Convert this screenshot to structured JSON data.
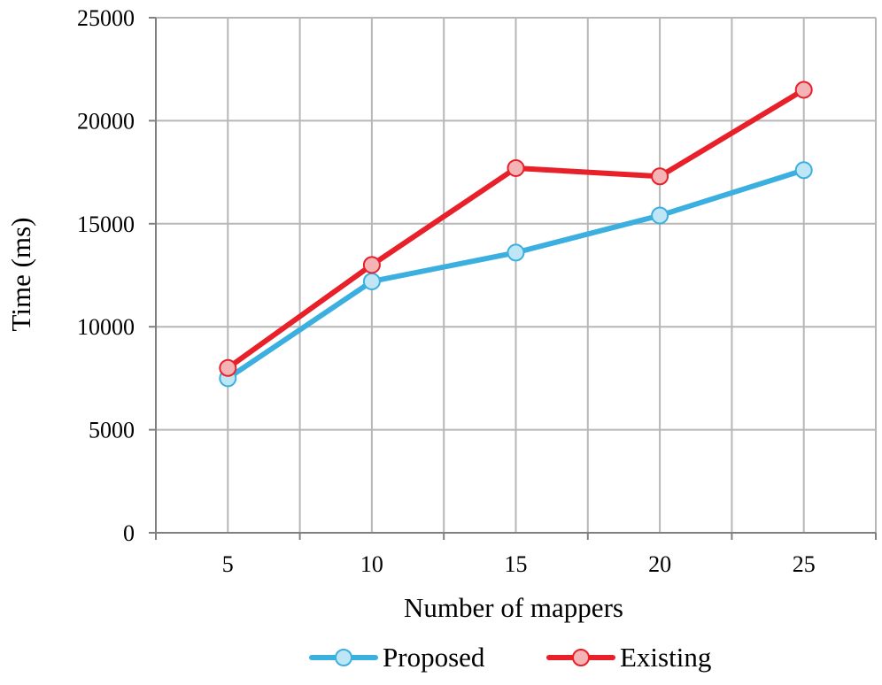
{
  "chart_data": {
    "type": "line",
    "title": "",
    "xlabel": "Number of mappers",
    "ylabel": "Time (ms)",
    "categories": [
      "5",
      "10",
      "15",
      "20",
      "25"
    ],
    "ylim": [
      0,
      25000
    ],
    "yticks": [
      0,
      5000,
      10000,
      15000,
      20000,
      25000
    ],
    "grid": true,
    "legend_position": "bottom",
    "series": [
      {
        "name": "Proposed",
        "color": "#3bb0e0",
        "marker_fill": "#bfe6f6",
        "values": [
          7500,
          12200,
          13600,
          15400,
          17600
        ]
      },
      {
        "name": "Existing",
        "color": "#e8202a",
        "marker_fill": "#f4b4b6",
        "values": [
          8000,
          13000,
          17700,
          17300,
          21500
        ]
      }
    ]
  }
}
